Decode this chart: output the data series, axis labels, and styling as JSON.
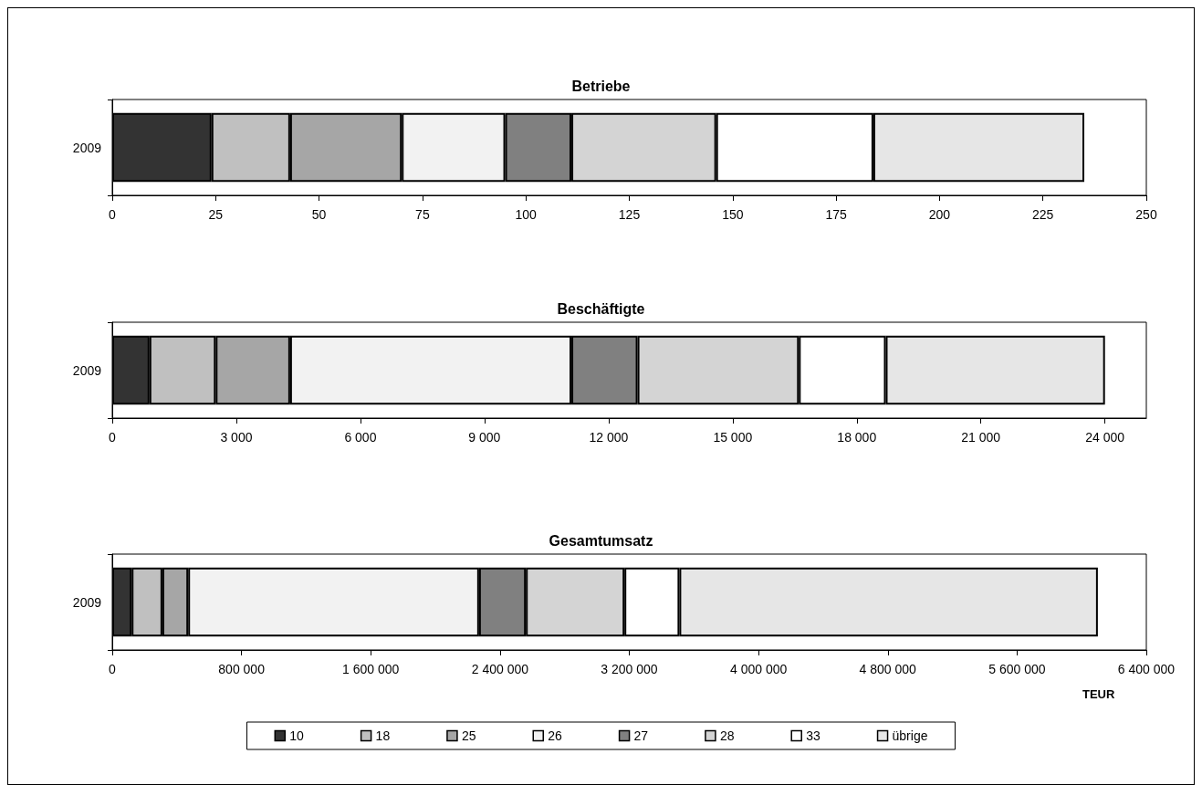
{
  "chart_data": [
    {
      "type": "bar",
      "title": "Betriebe",
      "orientation": "horizontal",
      "stacked": true,
      "categories": [
        "2009"
      ],
      "xlim": [
        0,
        250
      ],
      "xticks": [
        0,
        25,
        50,
        75,
        100,
        125,
        150,
        175,
        200,
        225,
        250
      ],
      "grid": false,
      "legend": false,
      "series": [
        {
          "color": "#333333",
          "values": [
            24
          ]
        },
        {
          "color": "#c0c0c0",
          "values": [
            19
          ]
        },
        {
          "color": "#a6a6a6",
          "values": [
            27
          ]
        },
        {
          "color": "#f2f2f2",
          "values": [
            25
          ]
        },
        {
          "color": "#808080",
          "values": [
            16
          ]
        },
        {
          "color": "#d4d4d4",
          "values": [
            35
          ]
        },
        {
          "color": "#ffffff",
          "values": [
            38
          ]
        },
        {
          "color": "#e6e6e6",
          "values": [
            51
          ]
        }
      ]
    },
    {
      "type": "bar",
      "title": "Beschäftigte",
      "orientation": "horizontal",
      "stacked": true,
      "categories": [
        "2009"
      ],
      "xlim": [
        0,
        25000
      ],
      "xticks": [
        0,
        {
          "value": 3000,
          "label": "3 000"
        },
        {
          "value": 6000,
          "label": "6 000"
        },
        {
          "value": 9000,
          "label": "9 000"
        },
        {
          "value": 12000,
          "label": "12 000"
        },
        {
          "value": 15000,
          "label": "15 000"
        },
        {
          "value": 18000,
          "label": "18 000"
        },
        {
          "value": 21000,
          "label": "21 000"
        },
        {
          "value": 24000,
          "label": "24 000"
        }
      ],
      "grid": false,
      "legend": false,
      "series": [
        {
          "color": "#333333",
          "values": [
            900
          ]
        },
        {
          "color": "#c0c0c0",
          "values": [
            1600
          ]
        },
        {
          "color": "#a6a6a6",
          "values": [
            1800
          ]
        },
        {
          "color": "#f2f2f2",
          "values": [
            6800
          ]
        },
        {
          "color": "#808080",
          "values": [
            1600
          ]
        },
        {
          "color": "#d4d4d4",
          "values": [
            3900
          ]
        },
        {
          "color": "#ffffff",
          "values": [
            2100
          ]
        },
        {
          "color": "#e6e6e6",
          "values": [
            5300
          ]
        }
      ]
    },
    {
      "type": "bar",
      "title": "Gesamtumsatz",
      "xlabel": "TEUR",
      "orientation": "horizontal",
      "stacked": true,
      "categories": [
        "2009"
      ],
      "xlim": [
        0,
        6400000
      ],
      "xticks": [
        0,
        {
          "value": 800000,
          "label": "800 000"
        },
        {
          "value": 1600000,
          "label": "1 600 000"
        },
        {
          "value": 2400000,
          "label": "2 400 000"
        },
        {
          "value": 3200000,
          "label": "3 200 000"
        },
        {
          "value": 4000000,
          "label": "4 000 000"
        },
        {
          "value": 4800000,
          "label": "4 800 000"
        },
        {
          "value": 5600000,
          "label": "5 600 000"
        },
        {
          "value": 6400000,
          "label": "6 400 000"
        }
      ],
      "grid": false,
      "legend": "bottom",
      "series": [
        {
          "name": "10",
          "color": "#333333",
          "values": [
            120000
          ]
        },
        {
          "name": "18",
          "color": "#c0c0c0",
          "values": [
            190000
          ]
        },
        {
          "name": "25",
          "color": "#a6a6a6",
          "values": [
            160000
          ]
        },
        {
          "name": "26",
          "color": "#f2f2f2",
          "values": [
            1800000
          ]
        },
        {
          "name": "27",
          "color": "#808080",
          "values": [
            290000
          ]
        },
        {
          "name": "28",
          "color": "#d4d4d4",
          "values": [
            610000
          ]
        },
        {
          "name": "33",
          "color": "#ffffff",
          "values": [
            340000
          ]
        },
        {
          "name": "übrige",
          "color": "#e6e6e6",
          "values": [
            2590000
          ]
        }
      ]
    }
  ]
}
